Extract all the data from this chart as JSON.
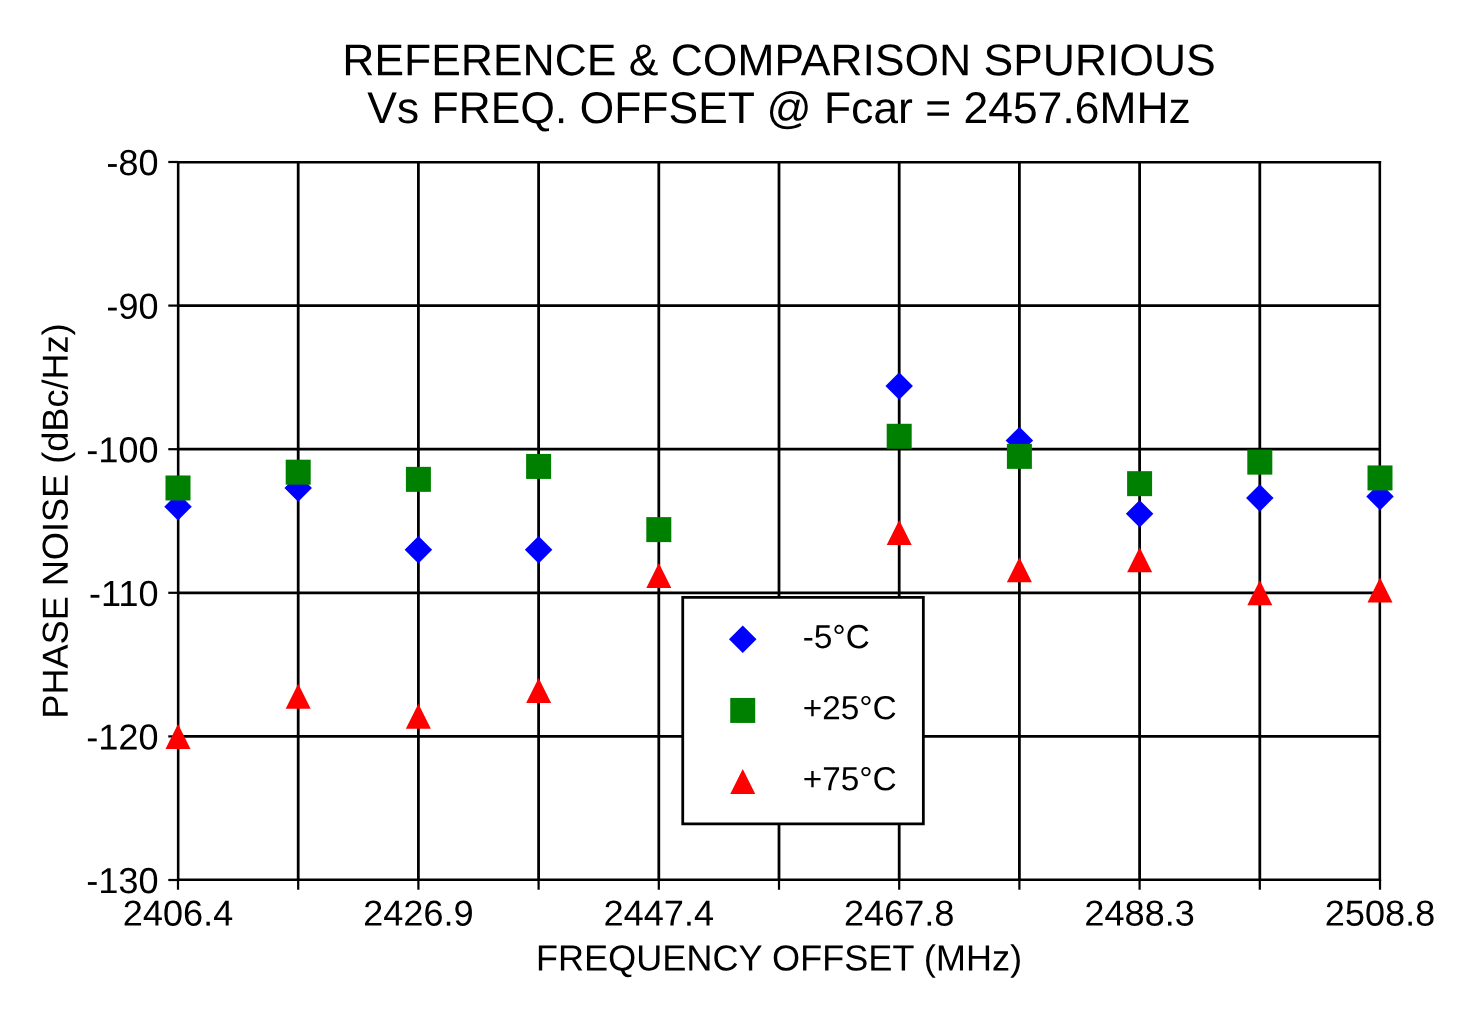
{
  "chart_data": {
    "type": "scatter",
    "title": "REFERENCE & COMPARISON SPURIOUS\nVs FREQ. OFFSET @ Fcar = 2457.6MHz",
    "xlabel": "FREQUENCY OFFSET (MHz)",
    "ylabel": "PHASE NOISE (dBc/Hz)",
    "x": [
      2406.4,
      2416.64,
      2426.88,
      2437.12,
      2447.36,
      2457.6,
      2467.84,
      2478.08,
      2488.32,
      2498.56,
      2508.8
    ],
    "series": [
      {
        "name": "-5°C",
        "color": "#0000ff",
        "marker": "diamond",
        "values": [
          -104,
          -102.7,
          -107,
          -107,
          null,
          null,
          -95.6,
          -99.4,
          -104.5,
          -103.4,
          -103.3
        ]
      },
      {
        "name": "+25°C",
        "color": "#008000",
        "marker": "square",
        "values": [
          -102.7,
          -101.6,
          -102.1,
          -101.2,
          -105.6,
          null,
          -99.1,
          -100.5,
          -102.4,
          -100.9,
          -102.0
        ]
      },
      {
        "name": "+75°C",
        "color": "#ff0000",
        "marker": "triangle",
        "values": [
          -120,
          -117.2,
          -118.6,
          -116.8,
          -108.8,
          null,
          -105.8,
          -108.4,
          -107.7,
          -110,
          -109.8
        ]
      }
    ],
    "xlim": [
      2406.4,
      2508.8
    ],
    "xticks": [
      {
        "value": 2406.4,
        "label": "2406.4"
      },
      {
        "value": 2416.64,
        "label": null
      },
      {
        "value": 2426.88,
        "label": "2426.9"
      },
      {
        "value": 2437.12,
        "label": null
      },
      {
        "value": 2447.36,
        "label": "2447.4"
      },
      {
        "value": 2457.6,
        "label": null
      },
      {
        "value": 2467.84,
        "label": "2467.8"
      },
      {
        "value": 2478.08,
        "label": null
      },
      {
        "value": 2488.32,
        "label": "2488.3"
      },
      {
        "value": 2498.56,
        "label": null
      },
      {
        "value": 2508.8,
        "label": "2508.8"
      }
    ],
    "ylim": [
      -130,
      -80
    ],
    "yticks": [
      -130,
      -120,
      -110,
      -100,
      -90,
      -80
    ],
    "grid": true,
    "legend": "bottom"
  }
}
